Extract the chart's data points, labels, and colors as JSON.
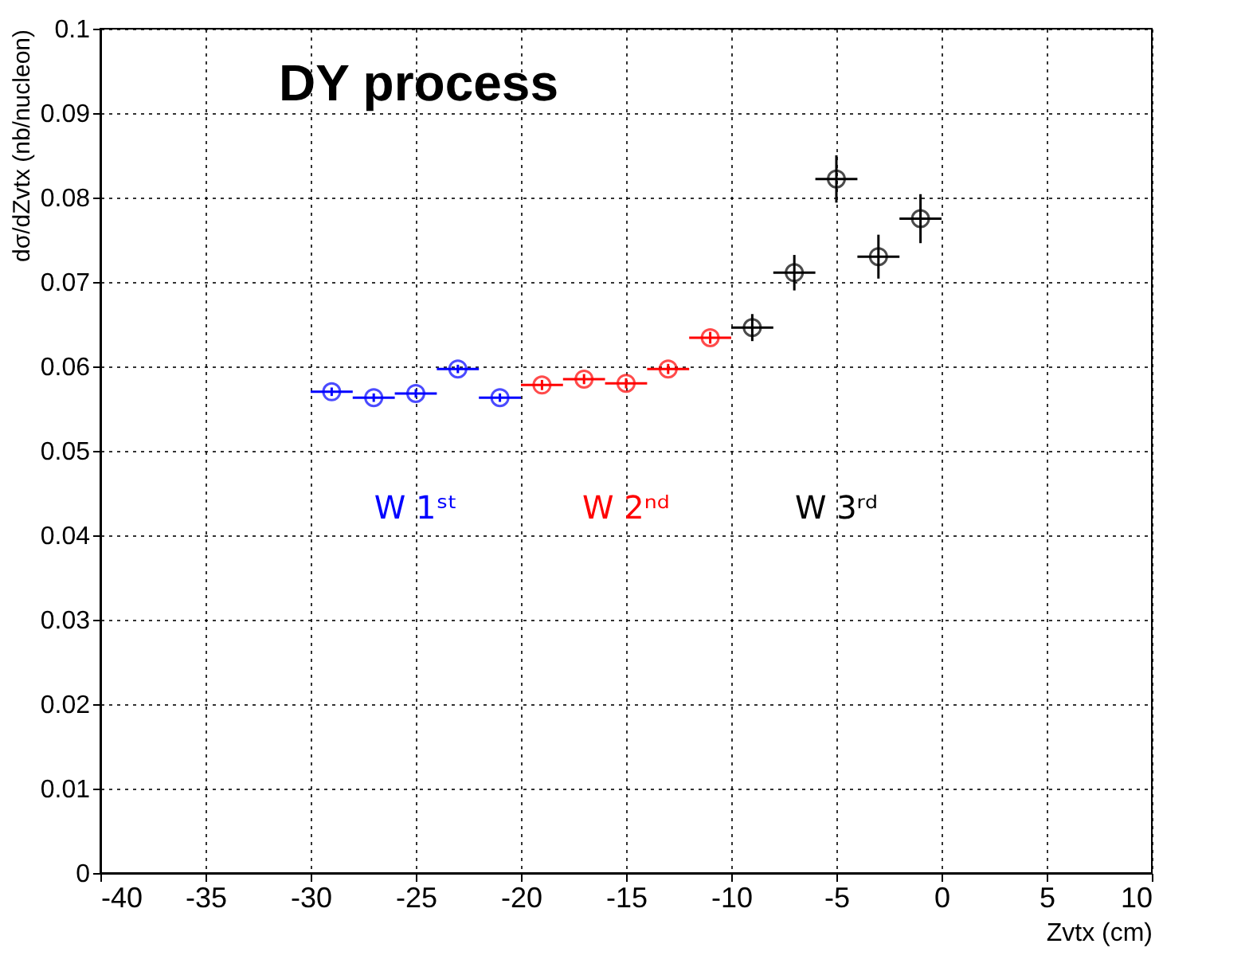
{
  "chart_data": {
    "type": "scatter",
    "title": "DY process",
    "xlabel": "Zvtx (cm)",
    "ylabel": "dσ/dZvtx (nb/nucleon)",
    "xlim": [
      -40,
      10
    ],
    "xticks": [
      -40,
      -35,
      -30,
      -25,
      -20,
      -15,
      -10,
      -5,
      0,
      5,
      10
    ],
    "ylim": [
      0,
      0.1
    ],
    "yticks": [
      0,
      0.01,
      0.02,
      0.03,
      0.04,
      0.05,
      0.06,
      0.07,
      0.08,
      0.09,
      0.1
    ],
    "grid": true,
    "marker": "circle",
    "legend": false,
    "series": [
      {
        "name": "W 1ˢᵗ",
        "color": "#0000ff",
        "x": [
          -29,
          -27,
          -25,
          -23,
          -21
        ],
        "values": [
          0.057,
          0.0563,
          0.0568,
          0.0597,
          0.0563
        ],
        "errors": [
          0.0005,
          0.0005,
          0.0005,
          0.0005,
          0.0005
        ],
        "xerrors": [
          1,
          1,
          1,
          1,
          1
        ]
      },
      {
        "name": "W 2ⁿᵈ",
        "color": "#ff0000",
        "x": [
          -19,
          -17,
          -15,
          -13,
          -11
        ],
        "values": [
          0.0578,
          0.0585,
          0.058,
          0.0597,
          0.0634
        ],
        "errors": [
          0.0006,
          0.0006,
          0.0006,
          0.0006,
          0.0007
        ],
        "xerrors": [
          1,
          1,
          1,
          1,
          1
        ]
      },
      {
        "name": "W 3ʳᵈ",
        "color": "#000000",
        "x": [
          -9,
          -7,
          -5,
          -3,
          -1
        ],
        "values": [
          0.0646,
          0.0711,
          0.0822,
          0.073,
          0.0775
        ],
        "errors": [
          0.0016,
          0.0021,
          0.0028,
          0.0026,
          0.0029
        ],
        "xerrors": [
          1,
          1,
          1,
          1,
          1
        ]
      }
    ]
  }
}
